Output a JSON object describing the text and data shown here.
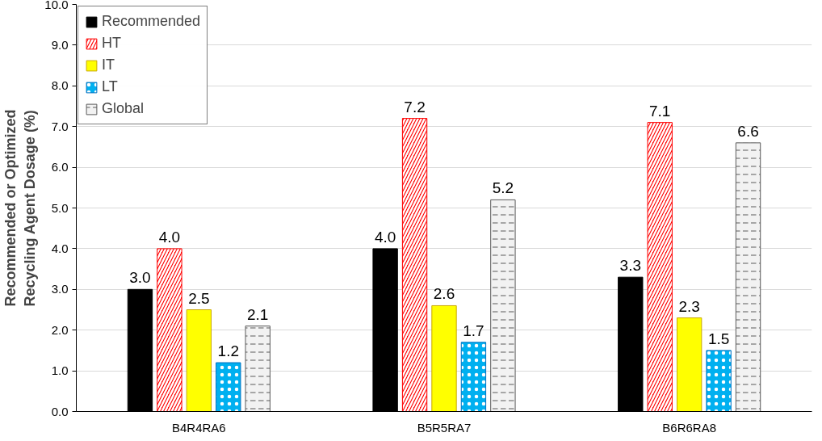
{
  "chart_data": {
    "type": "bar",
    "ylabel": "Recommended or Optimized\nRecycling Agent Dosage (%)",
    "categories": [
      "B4R4RA6",
      "B5R5RA7",
      "B6R6RA8"
    ],
    "series": [
      {
        "name": "Recommended",
        "color": "#000000",
        "values": [
          3.0,
          4.0,
          3.3
        ],
        "value_labels": [
          "3.0",
          "4.0",
          "3.3"
        ]
      },
      {
        "name": "HT",
        "color": "#ff0000",
        "values": [
          4.0,
          7.2,
          7.1
        ],
        "value_labels": [
          "4.0",
          "7.2",
          "7.1"
        ]
      },
      {
        "name": "IT",
        "color": "#ffff00",
        "values": [
          2.5,
          2.6,
          2.3
        ],
        "value_labels": [
          "2.5",
          "2.6",
          "2.3"
        ]
      },
      {
        "name": "LT",
        "color": "#00b0f0",
        "values": [
          1.2,
          1.7,
          1.5
        ],
        "value_labels": [
          "1.2",
          "1.7",
          "1.5"
        ]
      },
      {
        "name": "Global",
        "color": "#f2f2f2",
        "values": [
          2.1,
          5.2,
          6.6
        ],
        "value_labels": [
          "2.1",
          "5.2",
          "6.6"
        ]
      }
    ],
    "ylim": [
      0,
      10
    ],
    "yticks": [
      {
        "value": 0,
        "label": "0.0"
      },
      {
        "value": 1,
        "label": "1.0"
      },
      {
        "value": 2,
        "label": "2.0"
      },
      {
        "value": 3,
        "label": "3.0"
      },
      {
        "value": 4,
        "label": "4.0"
      },
      {
        "value": 5,
        "label": "5.0"
      },
      {
        "value": 6,
        "label": "6.0"
      },
      {
        "value": 7,
        "label": "7.0"
      },
      {
        "value": 8,
        "label": "8.0"
      },
      {
        "value": 9,
        "label": "9.0"
      },
      {
        "value": 10,
        "label": "10.0"
      }
    ],
    "grid": "y",
    "legend": "top left"
  }
}
